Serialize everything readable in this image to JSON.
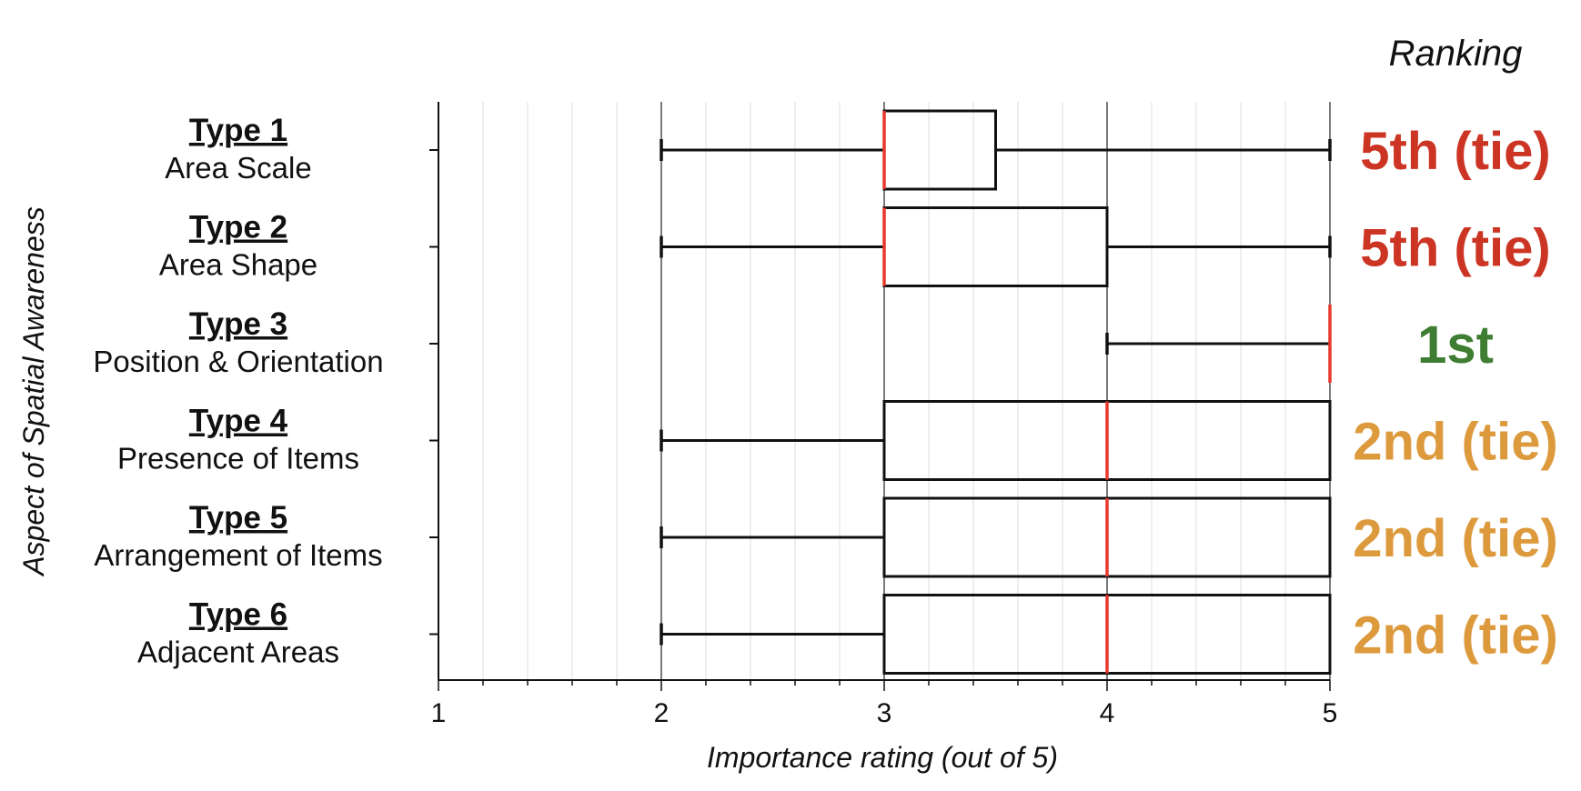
{
  "chart_data": {
    "type": "boxplot",
    "orientation": "horizontal",
    "xlabel": "Importance rating (out of 5)",
    "ylabel": "Aspect of Spatial Awareness",
    "xlim": [
      1,
      5
    ],
    "xticks": [
      "1",
      "2",
      "3",
      "4",
      "5"
    ],
    "ranking_header": "Ranking",
    "colors": {
      "median": "#e8382b",
      "box": "#111111",
      "rank_red": "#cc3524",
      "rank_green": "#3f7e32",
      "rank_orange": "#dd9a3d",
      "grid_major": "#222222",
      "grid_minor": "#dcdcdc"
    },
    "series": [
      {
        "title": "Type 1",
        "subtitle": "Area Scale",
        "min": 2,
        "q1": 3,
        "median": 3,
        "q3": 3.5,
        "max": 5,
        "rank": "5th (tie)",
        "rank_color": "#cc3524"
      },
      {
        "title": "Type 2",
        "subtitle": "Area Shape",
        "min": 2,
        "q1": 3,
        "median": 3,
        "q3": 4,
        "max": 5,
        "rank": "5th (tie)",
        "rank_color": "#cc3524"
      },
      {
        "title": "Type 3",
        "subtitle": "Position & Orientation",
        "min": 4,
        "q1": 5,
        "median": 5,
        "q3": 5,
        "max": 5,
        "rank": "1st",
        "rank_color": "#3f7e32"
      },
      {
        "title": "Type 4",
        "subtitle": "Presence of Items",
        "min": 2,
        "q1": 3,
        "median": 4,
        "q3": 5,
        "max": 5,
        "rank": "2nd (tie)",
        "rank_color": "#dd9a3d"
      },
      {
        "title": "Type 5",
        "subtitle": "Arrangement of Items",
        "min": 2,
        "q1": 3,
        "median": 4,
        "q3": 5,
        "max": 5,
        "rank": "2nd (tie)",
        "rank_color": "#dd9a3d"
      },
      {
        "title": "Type 6",
        "subtitle": "Adjacent Areas",
        "min": 2,
        "q1": 3,
        "median": 4,
        "q3": 5,
        "max": 5,
        "rank": "2nd (tie)",
        "rank_color": "#dd9a3d"
      }
    ]
  }
}
